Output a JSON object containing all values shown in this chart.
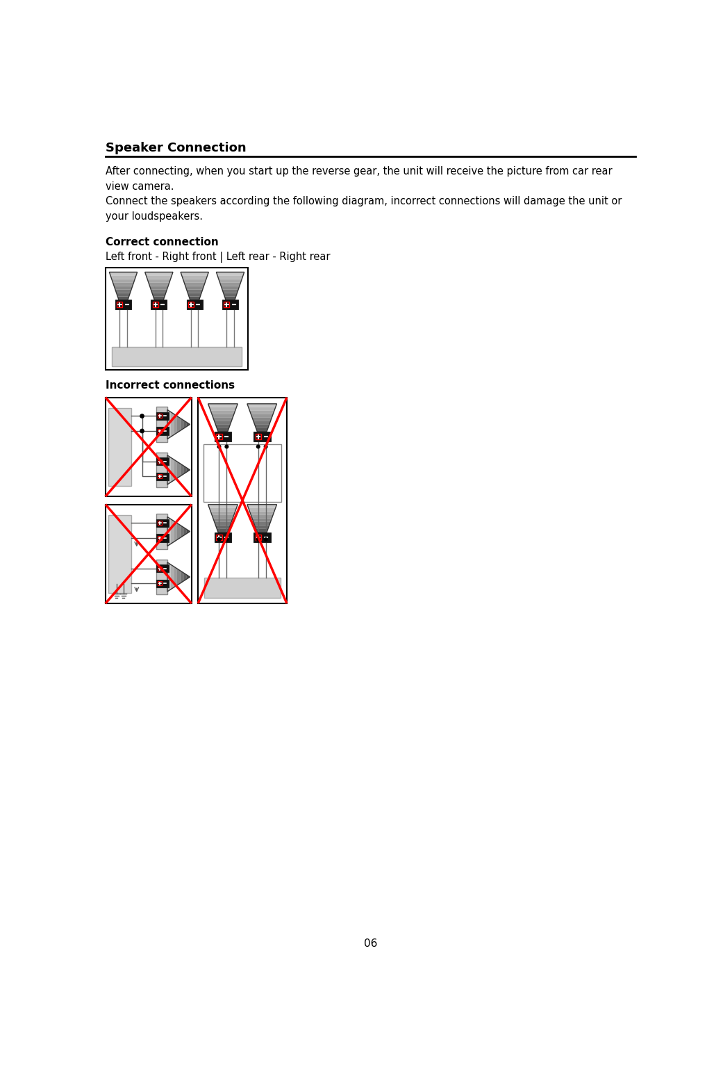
{
  "title": "Speaker Connection",
  "body_text_1": "After connecting, when you start up the reverse gear, the unit will receive the picture from car rear\nview camera.\nConnect the speakers according the following diagram, incorrect connections will damage the unit or\nyour loudspeakers.",
  "correct_heading": "Correct connection",
  "correct_label": "Left front - Right front | Left rear - Right rear",
  "incorrect_heading": "Incorrect connections",
  "page_number": "06",
  "bg_color": "#ffffff"
}
